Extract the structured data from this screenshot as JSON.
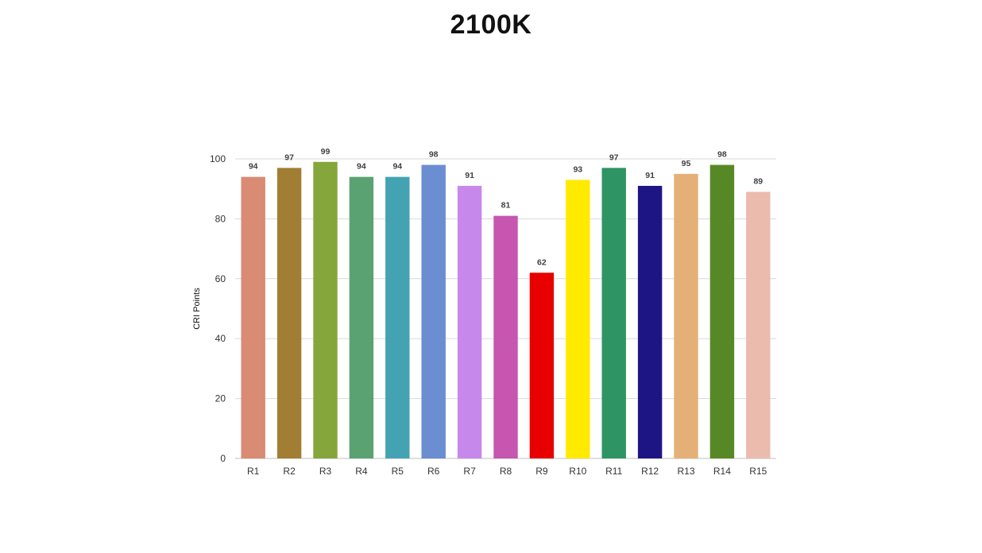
{
  "chart_data": {
    "type": "bar",
    "title": "2100K",
    "xlabel": "",
    "ylabel": "CRI Points",
    "ylim": [
      0,
      100
    ],
    "yticks": [
      0,
      20,
      40,
      60,
      80,
      100
    ],
    "grid": true,
    "legend": "none",
    "categories": [
      "R1",
      "R2",
      "R3",
      "R4",
      "R5",
      "R6",
      "R7",
      "R8",
      "R9",
      "R10",
      "R11",
      "R12",
      "R13",
      "R14",
      "R15"
    ],
    "values": [
      94,
      97,
      99,
      94,
      94,
      98,
      91,
      81,
      62,
      93,
      97,
      91,
      95,
      98,
      89
    ],
    "colors": [
      "#d98b73",
      "#a17e34",
      "#84a63a",
      "#5aa272",
      "#44a3b3",
      "#6b8dd1",
      "#c788ec",
      "#c656b0",
      "#e80000",
      "#ffea00",
      "#2e9464",
      "#1e1585",
      "#e4b077",
      "#578826",
      "#ebbbae"
    ]
  }
}
